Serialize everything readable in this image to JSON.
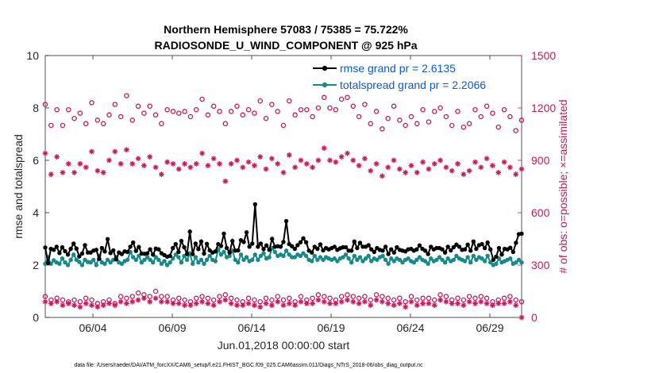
{
  "chart_data": {
    "type": "line",
    "title_line1": "Northern Hemisphere 57083 / 75385 = 75.722%",
    "title_line2": "RADIOSONDE_U_WIND_COMPONENT @ 925 hPa",
    "xlabel": "Jun.01,2018 00:00:00 start",
    "ylabel_left": "rmse and totalspread",
    "ylabel_right": "# of obs: o=possible; ×=assimilated",
    "x_ticks": [
      "06/04",
      "06/09",
      "06/14",
      "06/19",
      "06/24",
      "06/29"
    ],
    "x_tick_days": [
      4,
      9,
      14,
      19,
      24,
      29
    ],
    "xlim": [
      1,
      31
    ],
    "ylim_left": [
      0,
      10
    ],
    "y_ticks_left": [
      "0",
      "2",
      "4",
      "6",
      "8",
      "10"
    ],
    "ylim_right": [
      0,
      1500
    ],
    "y_ticks_right": [
      "0",
      "300",
      "600",
      "900",
      "1200",
      "1500"
    ],
    "legend": [
      {
        "label": "rmse grand pr = 2.6135",
        "color": "#000000"
      },
      {
        "label": "totalspread grand pr = 2.2066",
        "color": "#16898a"
      }
    ],
    "footnote": "data file: /Users/raeder/DAI/ATM_forcXX/CAM6_setup/f.e21.FHIST_BGC.f09_025.CAM6assim.011/Diags_NTrS_2018-06/obs_diag_output.nc",
    "series": [
      {
        "name": "rmse",
        "color": "#000000",
        "values": [
          2.67,
          2.08,
          2.62,
          2.58,
          2.7,
          2.46,
          2.68,
          2.53,
          2.4,
          2.62,
          2.82,
          2.63,
          2.33,
          2.44,
          2.76,
          2.48,
          2.48,
          2.55,
          2.58,
          2.24,
          2.65,
          2.52,
          2.99,
          2.46,
          2.56,
          2.22,
          2.48,
          2.42,
          2.52,
          2.5,
          2.7,
          2.86,
          2.54,
          2.69,
          2.44,
          2.43,
          2.45,
          2.6,
          2.4,
          2.63,
          2.6,
          2.45,
          2.38,
          2.32,
          2.35,
          2.65,
          2.8,
          2.5,
          2.92,
          2.68,
          2.42,
          3.28,
          2.42,
          2.82,
          2.61,
          2.9,
          2.44,
          2.81,
          2.56,
          2.48,
          2.52,
          2.8,
          2.73,
          3.2,
          2.65,
          2.48,
          2.92,
          2.55,
          2.56,
          2.95,
          2.88,
          3.25,
          2.7,
          2.82,
          4.32,
          2.7,
          2.82,
          2.61,
          2.75,
          2.58,
          3.0,
          2.7,
          2.72,
          2.7,
          2.88,
          3.68,
          2.8,
          2.72,
          2.62,
          2.76,
          2.87,
          3.02,
          2.87,
          2.55,
          2.48,
          2.7,
          2.62,
          2.79,
          2.56,
          2.65,
          2.6,
          2.65,
          2.7,
          2.58,
          2.64,
          2.68,
          2.68,
          2.55,
          2.55,
          2.9,
          2.65,
          2.85,
          2.7,
          2.7,
          2.76,
          2.6,
          2.5,
          2.65,
          2.58,
          2.55,
          2.7,
          2.42,
          2.6,
          2.48,
          2.68,
          2.58,
          2.55,
          2.52,
          2.6,
          2.62,
          2.55,
          2.6,
          2.75,
          2.62,
          2.55,
          2.42,
          2.7,
          2.6,
          2.65,
          2.65,
          2.6,
          2.48,
          2.7,
          2.56,
          2.68,
          2.78,
          2.7,
          2.58,
          2.6,
          2.78,
          2.55,
          2.9,
          2.62,
          2.76,
          2.8,
          2.65,
          2.86,
          2.6,
          2.2,
          2.32,
          2.65,
          2.4,
          2.62,
          2.6,
          2.66,
          2.5,
          2.85,
          3.18,
          3.2
        ]
      },
      {
        "name": "totalspread",
        "color": "#16898a",
        "values": [
          2.05,
          2.3,
          2.05,
          2.18,
          2.1,
          2.05,
          2.25,
          2.1,
          2.0,
          2.2,
          2.4,
          2.2,
          2.12,
          2.0,
          2.2,
          2.12,
          2.1,
          2.2,
          2.0,
          2.35,
          2.1,
          2.05,
          2.2,
          2.1,
          2.2,
          2.3,
          2.1,
          2.05,
          2.15,
          2.2,
          2.5,
          2.3,
          2.2,
          2.35,
          2.1,
          2.2,
          2.3,
          2.2,
          2.1,
          2.3,
          2.2,
          2.05,
          2.15,
          2.0,
          2.1,
          2.25,
          2.4,
          2.3,
          2.1,
          2.35,
          2.2,
          2.45,
          2.05,
          2.3,
          2.1,
          2.2,
          2.05,
          2.2,
          2.35,
          2.2,
          2.15,
          2.6,
          2.4,
          2.5,
          2.3,
          2.35,
          2.55,
          2.2,
          2.1,
          2.4,
          2.2,
          2.3,
          2.15,
          2.2,
          2.4,
          2.2,
          2.35,
          2.45,
          2.25,
          2.3,
          2.65,
          2.5,
          2.35,
          2.4,
          2.35,
          2.55,
          2.4,
          2.3,
          2.3,
          2.4,
          2.35,
          2.45,
          2.35,
          2.2,
          2.15,
          2.35,
          2.2,
          2.3,
          2.2,
          2.3,
          2.25,
          2.2,
          2.25,
          2.15,
          2.25,
          2.3,
          2.4,
          2.25,
          2.1,
          2.35,
          2.2,
          2.3,
          2.15,
          2.25,
          2.35,
          2.15,
          2.25,
          2.2,
          2.3,
          2.35,
          2.2,
          2.05,
          2.25,
          2.15,
          2.25,
          2.2,
          2.1,
          2.2,
          2.25,
          2.15,
          2.1,
          2.2,
          2.3,
          2.2,
          2.15,
          2.05,
          2.25,
          2.15,
          2.2,
          2.3,
          2.2,
          2.1,
          2.25,
          2.15,
          2.2,
          2.35,
          2.25,
          2.2,
          2.15,
          2.3,
          2.1,
          2.35,
          2.2,
          2.3,
          2.25,
          2.15,
          2.35,
          2.1,
          2.0,
          2.05,
          2.25,
          2.1,
          2.15,
          2.2,
          2.25,
          2.05,
          2.1,
          2.2,
          2.1
        ]
      }
    ],
    "obs_possible_upper": [
      1220,
      1100,
      1190,
      1100,
      1190,
      1140,
      1170,
      1110,
      1230,
      1130,
      1110,
      1160,
      1220,
      1150,
      1270,
      1130,
      1210,
      1170,
      1210,
      1160,
      1110,
      1190,
      1180,
      1170,
      1180,
      1150,
      1190,
      1250,
      1160,
      1210,
      1180,
      1110,
      1180,
      1210,
      1160,
      1190,
      1170,
      1240,
      1140,
      1220,
      1180,
      1100,
      1240,
      1160,
      1190,
      1190,
      1150,
      1200,
      1260,
      1200,
      1190,
      1250,
      1260,
      1210,
      1150,
      1220,
      1110,
      1180,
      1080,
      1140,
      1210,
      1130,
      1100,
      1150,
      1110,
      1190,
      1120,
      1180,
      1200,
      1150,
      1100,
      1180,
      1090,
      1110,
      1190,
      1150,
      1210,
      1170,
      1090,
      1190,
      1150,
      1070,
      1130
    ],
    "obs_assimilated_upper": [
      940,
      820,
      920,
      830,
      880,
      830,
      880,
      860,
      950,
      840,
      830,
      900,
      950,
      880,
      960,
      880,
      910,
      870,
      920,
      860,
      820,
      890,
      880,
      850,
      880,
      860,
      880,
      940,
      870,
      910,
      880,
      780,
      880,
      900,
      860,
      890,
      870,
      920,
      850,
      910,
      880,
      830,
      930,
      860,
      900,
      880,
      860,
      900,
      970,
      900,
      890,
      920,
      940,
      900,
      870,
      910,
      840,
      880,
      810,
      860,
      900,
      850,
      830,
      870,
      830,
      890,
      850,
      880,
      900,
      860,
      840,
      880,
      820,
      840,
      890,
      860,
      910,
      870,
      830,
      890,
      860,
      820,
      850
    ],
    "obs_possible_lower": [
      120,
      100,
      110,
      100,
      90,
      100,
      90,
      110,
      100,
      80,
      90,
      100,
      80,
      120,
      110,
      120,
      140,
      130,
      120,
      150,
      120,
      120,
      100,
      110,
      100,
      90,
      110,
      120,
      110,
      100,
      120,
      130,
      110,
      100,
      90,
      110,
      100,
      90,
      110,
      100,
      120,
      100,
      110,
      90,
      120,
      100,
      110,
      130,
      120,
      110,
      100,
      120,
      130,
      120,
      110,
      120,
      100,
      130,
      120,
      110,
      100,
      110,
      90,
      120,
      100,
      110,
      110,
      100,
      130,
      120,
      100,
      110,
      100,
      120,
      110,
      120,
      110,
      90,
      100,
      110,
      120,
      100,
      90
    ],
    "obs_assimilated_lower": [
      90,
      80,
      90,
      70,
      80,
      70,
      60,
      80,
      70,
      60,
      70,
      80,
      70,
      90,
      80,
      90,
      100,
      110,
      90,
      110,
      90,
      90,
      80,
      80,
      70,
      70,
      80,
      90,
      80,
      70,
      90,
      100,
      80,
      70,
      70,
      80,
      70,
      60,
      80,
      70,
      90,
      70,
      80,
      70,
      90,
      80,
      80,
      100,
      90,
      80,
      80,
      90,
      100,
      90,
      80,
      90,
      70,
      100,
      90,
      80,
      70,
      80,
      60,
      90,
      70,
      80,
      80,
      70,
      100,
      90,
      80,
      80,
      70,
      90,
      80,
      90,
      80,
      70,
      80,
      80,
      90,
      70,
      0
    ]
  }
}
